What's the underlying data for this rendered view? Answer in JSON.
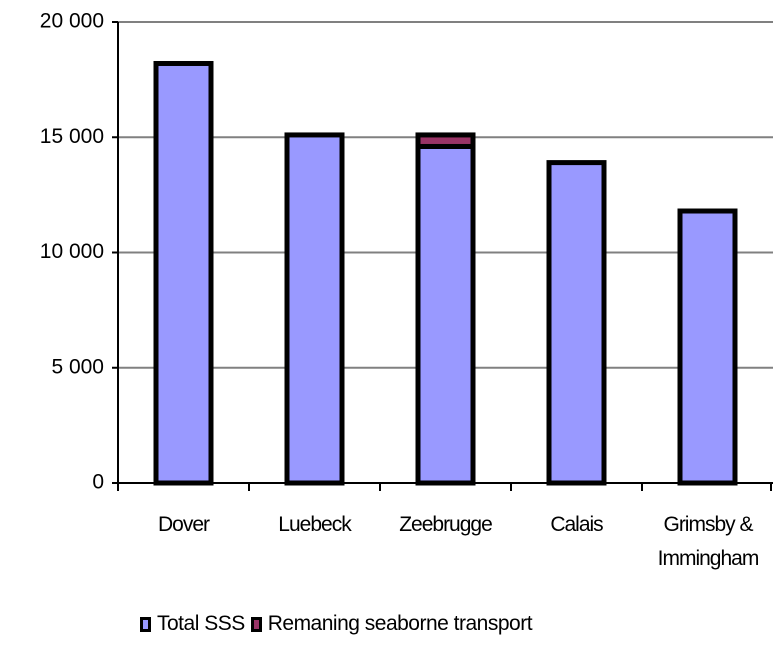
{
  "chart_data": {
    "type": "stacked_bar",
    "categories": [
      "Dover",
      "Luebeck",
      "Zeebrugge",
      "Calais",
      "Grimsby & Immingham"
    ],
    "series": [
      {
        "name": "Total SSS",
        "color": "#9999ff",
        "values": [
          18200,
          15100,
          14600,
          13900,
          11800
        ]
      },
      {
        "name": "Remaning seaborne transport",
        "color": "#993366",
        "values": [
          0,
          0,
          500,
          0,
          0
        ]
      }
    ],
    "ylim": [
      0,
      20000
    ],
    "yticks": [
      {
        "value": 0,
        "label": "0"
      },
      {
        "value": 5000,
        "label": "5 000"
      },
      {
        "value": 10000,
        "label": "10 000"
      },
      {
        "value": 15000,
        "label": "15 000"
      },
      {
        "value": 20000,
        "label": "20 000"
      }
    ],
    "grid": true,
    "legend": "bottom"
  }
}
